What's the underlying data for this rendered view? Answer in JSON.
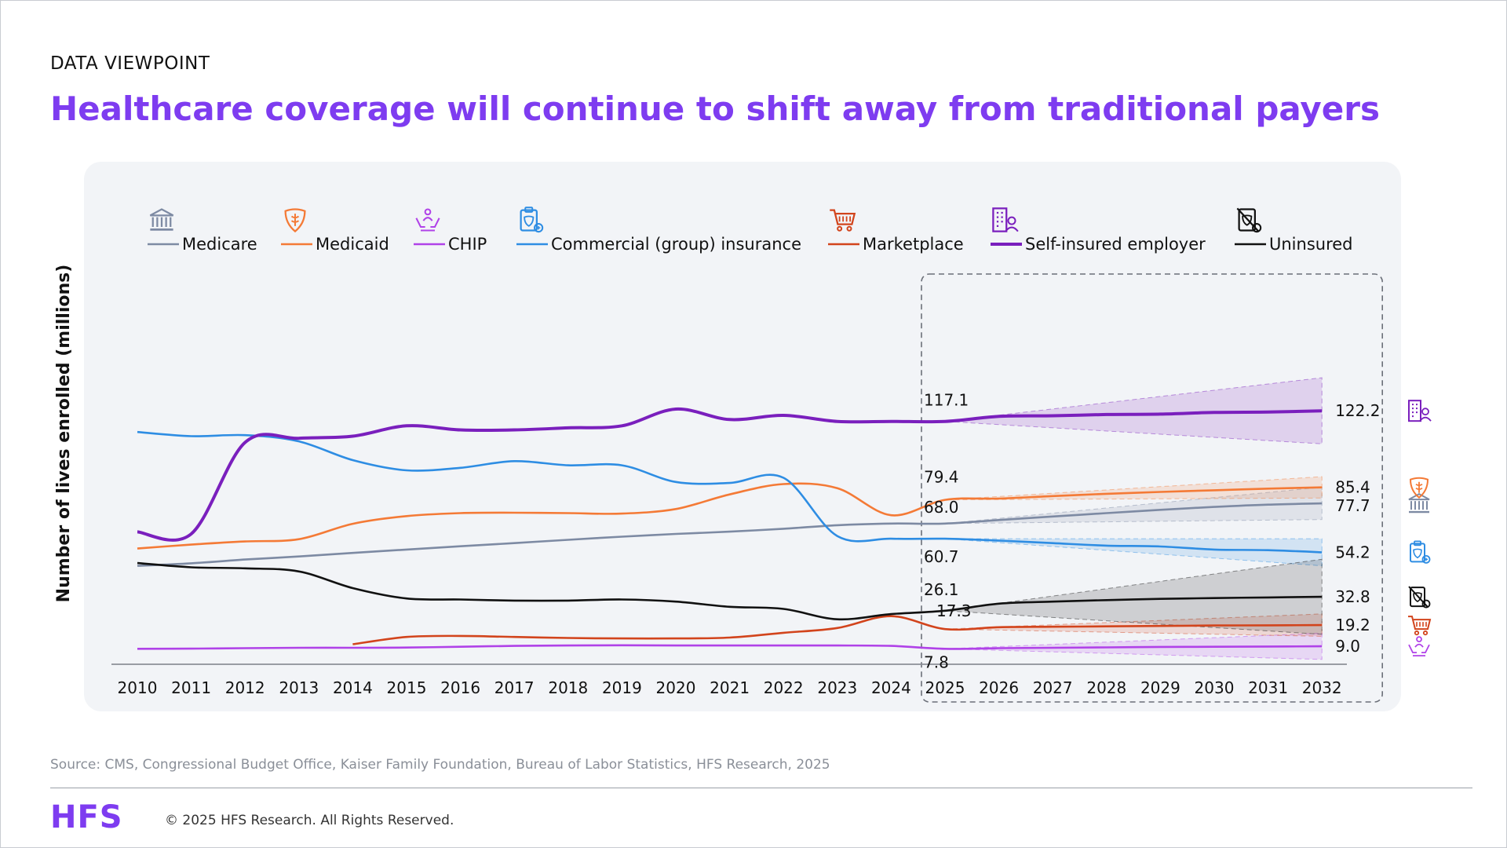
{
  "header": {
    "eyebrow": "DATA VIEWPOINT",
    "title": "Healthcare coverage will continue to shift away from traditional payers"
  },
  "footer": {
    "source": "Source: CMS, Congressional Budget Office, Kaiser Family Foundation, Bureau of Labor Statistics, HFS Research, 2025",
    "logo": "HFS",
    "copyright": "© 2025 HFS Research. All Rights Reserved."
  },
  "chart_data": {
    "type": "line",
    "title": "",
    "xlabel": "",
    "ylabel": "Number of lives enrolled (millions)",
    "ylim": [
      0,
      130
    ],
    "grid": false,
    "legend_position": "top",
    "x": [
      2010,
      2011,
      2012,
      2013,
      2014,
      2015,
      2016,
      2017,
      2018,
      2019,
      2020,
      2021,
      2022,
      2023,
      2024,
      2025,
      2026,
      2027,
      2028,
      2029,
      2030,
      2031,
      2032
    ],
    "forecast_start": 2025,
    "series": [
      {
        "name": "Medicare",
        "color": "#7d8aa3",
        "icon": "bank-icon",
        "values": [
          47.7,
          48.9,
          50.7,
          52.2,
          53.9,
          55.5,
          57.1,
          58.6,
          60.2,
          61.7,
          63.0,
          64.1,
          65.5,
          67.2,
          68.0,
          68.0,
          69.7,
          71.4,
          73.0,
          74.6,
          76.0,
          77.1,
          77.7
        ],
        "start_label": "68.0",
        "end_label": "77.7"
      },
      {
        "name": "Medicaid",
        "color": "#f47a36",
        "icon": "medical-shield-icon",
        "values": [
          56.0,
          57.9,
          59.4,
          60.5,
          67.9,
          71.6,
          73.0,
          73.2,
          73.0,
          72.8,
          75.0,
          82.0,
          87.0,
          85.0,
          72.0,
          79.4,
          80.0,
          81.2,
          82.3,
          83.2,
          84.0,
          84.8,
          85.4
        ],
        "start_label": "79.4",
        "end_label": "85.4"
      },
      {
        "name": "CHIP",
        "color": "#b042e8",
        "icon": "caring-hands-icon",
        "values": [
          7.8,
          7.9,
          8.1,
          8.3,
          8.3,
          8.4,
          8.8,
          9.2,
          9.4,
          9.5,
          9.4,
          9.4,
          9.4,
          9.4,
          9.2,
          7.8,
          8.1,
          8.3,
          8.5,
          8.7,
          8.8,
          8.9,
          9.0
        ],
        "start_label": "7.8",
        "end_label": "9.0"
      },
      {
        "name": "Commercial (group) insurance",
        "color": "#2e8de3",
        "icon": "clipboard-shield-icon",
        "values": [
          112.0,
          110.0,
          110.5,
          107.5,
          98.5,
          93.6,
          94.8,
          98.0,
          96.0,
          96.0,
          88.0,
          87.5,
          90.0,
          62.0,
          60.7,
          60.7,
          59.8,
          58.6,
          57.4,
          57.0,
          55.5,
          55.2,
          54.2
        ],
        "start_label": "60.7",
        "end_label": "54.2"
      },
      {
        "name": "Marketplace",
        "color": "#d2441c",
        "icon": "shopping-cart-icon",
        "values": [
          null,
          null,
          null,
          null,
          10.0,
          13.5,
          14.0,
          13.5,
          13.0,
          12.8,
          12.8,
          13.2,
          15.5,
          17.8,
          23.5,
          17.3,
          18.2,
          18.4,
          18.6,
          18.8,
          19.0,
          19.1,
          19.2
        ],
        "start_label": "17.3",
        "end_label": "19.2"
      },
      {
        "name": "Self-insured employer",
        "color": "#7a1fbd",
        "icon": "building-person-icon",
        "values": [
          64.0,
          63.0,
          107.0,
          109.0,
          110.0,
          115.0,
          113.0,
          113.0,
          114.0,
          115.0,
          123.0,
          118.0,
          120.0,
          117.1,
          117.1,
          117.1,
          119.5,
          119.8,
          120.4,
          120.6,
          121.4,
          121.6,
          122.2
        ],
        "start_label": "117.1",
        "end_label": "122.2"
      },
      {
        "name": "Uninsured",
        "color": "#111111",
        "icon": "no-coverage-icon",
        "values": [
          49.0,
          47.0,
          46.5,
          45.0,
          37.0,
          32.0,
          31.5,
          31.0,
          31.0,
          31.5,
          30.5,
          28.0,
          27.0,
          22.0,
          24.5,
          26.1,
          29.5,
          30.5,
          31.2,
          31.8,
          32.2,
          32.5,
          32.8
        ],
        "start_label": "26.1",
        "end_label": "32.8"
      }
    ]
  }
}
